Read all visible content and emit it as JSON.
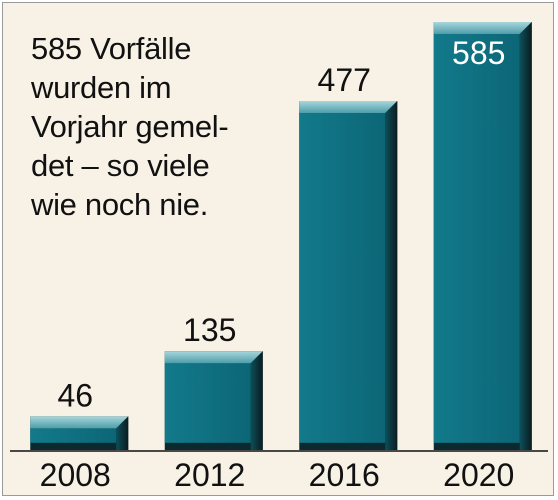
{
  "annotation": {
    "text": "585 Vorfälle\nwurden im\nVorjahr gemel-\ndet – so viele\nwie noch nie."
  },
  "colors": {
    "background": "#f7f1e6",
    "bar": "#0e6f7f",
    "bar_dark": "#0b2a30",
    "bar_highlight": "#7cbdc6",
    "text": "#111111",
    "label_on_bar": "#ffffff"
  },
  "chart_data": {
    "type": "bar",
    "categories": [
      "2008",
      "2012",
      "2016",
      "2020"
    ],
    "values": [
      46,
      135,
      477,
      585
    ],
    "value_labels": [
      "46",
      "135",
      "477",
      "585"
    ],
    "title": "",
    "xlabel": "",
    "ylabel": "",
    "ylim": [
      0,
      585
    ],
    "grid": false,
    "legend": "none"
  }
}
